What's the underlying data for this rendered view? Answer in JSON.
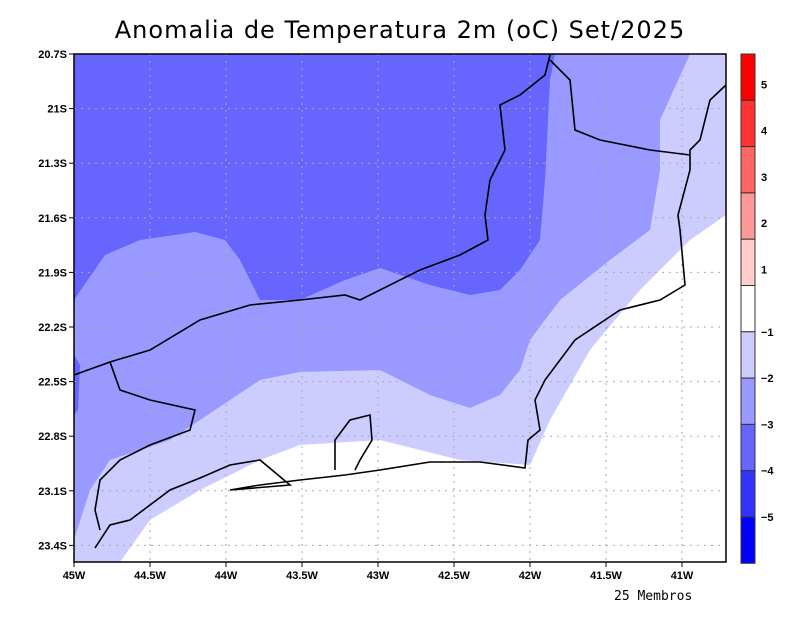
{
  "title": "Anomalia de Temperatura 2m (oC) Set/2025",
  "footer": "25 Membros",
  "lat_ticks": [
    "20.7S",
    "21S",
    "21.3S",
    "21.6S",
    "21.9S",
    "22.2S",
    "22.5S",
    "22.8S",
    "23.1S",
    "23.4S"
  ],
  "lon_ticks": [
    "45W",
    "44.5W",
    "44W",
    "43.5W",
    "43W",
    "42.5W",
    "42W",
    "41.5W",
    "41W"
  ],
  "colorbar": {
    "colors": [
      "#ff0000",
      "#ff3333",
      "#ff6666",
      "#ff9999",
      "#ffcccc",
      "#ffffff",
      "#ccccff",
      "#9999ff",
      "#6666ff",
      "#3333ff",
      "#0000ff"
    ],
    "labels": [
      "5",
      "4",
      "3",
      "2",
      "1",
      "−1",
      "−2",
      "−3",
      "−4",
      "−5"
    ]
  },
  "fill_colors": {
    "light": "#ccccff",
    "medium": "#9999ff",
    "dark": "#6666ff"
  }
}
